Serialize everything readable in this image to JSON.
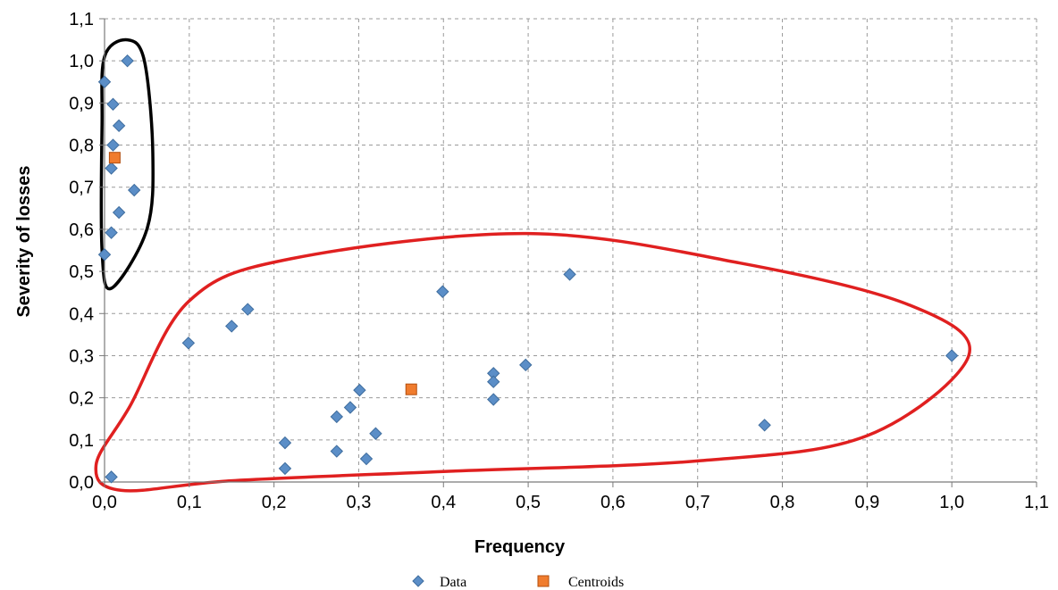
{
  "chart_data": {
    "type": "scatter",
    "title": "",
    "xlabel": "Frequency",
    "ylabel": "Severity of losses",
    "xlim": [
      0.0,
      1.1
    ],
    "ylim": [
      0.0,
      1.1
    ],
    "x_ticks": [
      "0,0",
      "0,1",
      "0,2",
      "0,3",
      "0,4",
      "0,5",
      "0,6",
      "0,7",
      "0,8",
      "0,9",
      "1,0",
      "1,1"
    ],
    "y_ticks": [
      "0,0",
      "0,1",
      "0,2",
      "0,3",
      "0,4",
      "0,5",
      "0,6",
      "0,7",
      "0,8",
      "0,9",
      "1,0",
      "1,1"
    ],
    "grid": true,
    "legend_position": "bottom",
    "series": [
      {
        "name": "Data",
        "marker": "diamond",
        "color": "#5b8ec7",
        "points": [
          [
            0.027,
            1.0
          ],
          [
            0.0,
            0.95
          ],
          [
            0.01,
            0.897
          ],
          [
            0.017,
            0.846
          ],
          [
            0.01,
            0.8
          ],
          [
            0.008,
            0.745
          ],
          [
            0.035,
            0.693
          ],
          [
            0.017,
            0.64
          ],
          [
            0.008,
            0.592
          ],
          [
            0.0,
            0.54
          ],
          [
            0.008,
            0.012
          ],
          [
            0.099,
            0.33
          ],
          [
            0.15,
            0.37
          ],
          [
            0.169,
            0.41
          ],
          [
            0.399,
            0.452
          ],
          [
            0.549,
            0.493
          ],
          [
            0.459,
            0.258
          ],
          [
            0.459,
            0.238
          ],
          [
            0.497,
            0.278
          ],
          [
            0.459,
            0.196
          ],
          [
            1.0,
            0.3
          ],
          [
            0.779,
            0.135
          ],
          [
            0.301,
            0.218
          ],
          [
            0.29,
            0.177
          ],
          [
            0.274,
            0.155
          ],
          [
            0.32,
            0.115
          ],
          [
            0.213,
            0.093
          ],
          [
            0.274,
            0.073
          ],
          [
            0.309,
            0.055
          ],
          [
            0.213,
            0.032
          ]
        ]
      },
      {
        "name": "Centroids",
        "marker": "square",
        "color": "#f07c2e",
        "points": [
          [
            0.012,
            0.77
          ],
          [
            0.362,
            0.22
          ]
        ]
      }
    ],
    "annotations": [
      {
        "shape": "closed-curve",
        "color": "#000000",
        "path": [
          [
            0.0,
            1.01
          ],
          [
            0.027,
            1.05
          ],
          [
            0.047,
            1.0
          ],
          [
            0.057,
            0.78
          ],
          [
            0.05,
            0.6
          ],
          [
            0.008,
            0.46
          ],
          [
            -0.003,
            0.55
          ],
          [
            -0.003,
            0.85
          ]
        ]
      },
      {
        "shape": "closed-curve",
        "color": "#e02020",
        "path": [
          [
            -0.01,
            0.04
          ],
          [
            0.03,
            0.18
          ],
          [
            0.1,
            0.43
          ],
          [
            0.22,
            0.53
          ],
          [
            0.5,
            0.59
          ],
          [
            0.75,
            0.52
          ],
          [
            0.95,
            0.42
          ],
          [
            1.02,
            0.3
          ],
          [
            0.9,
            0.11
          ],
          [
            0.7,
            0.05
          ],
          [
            0.4,
            0.025
          ],
          [
            0.15,
            0.003
          ],
          [
            0.02,
            -0.02
          ]
        ]
      }
    ]
  }
}
